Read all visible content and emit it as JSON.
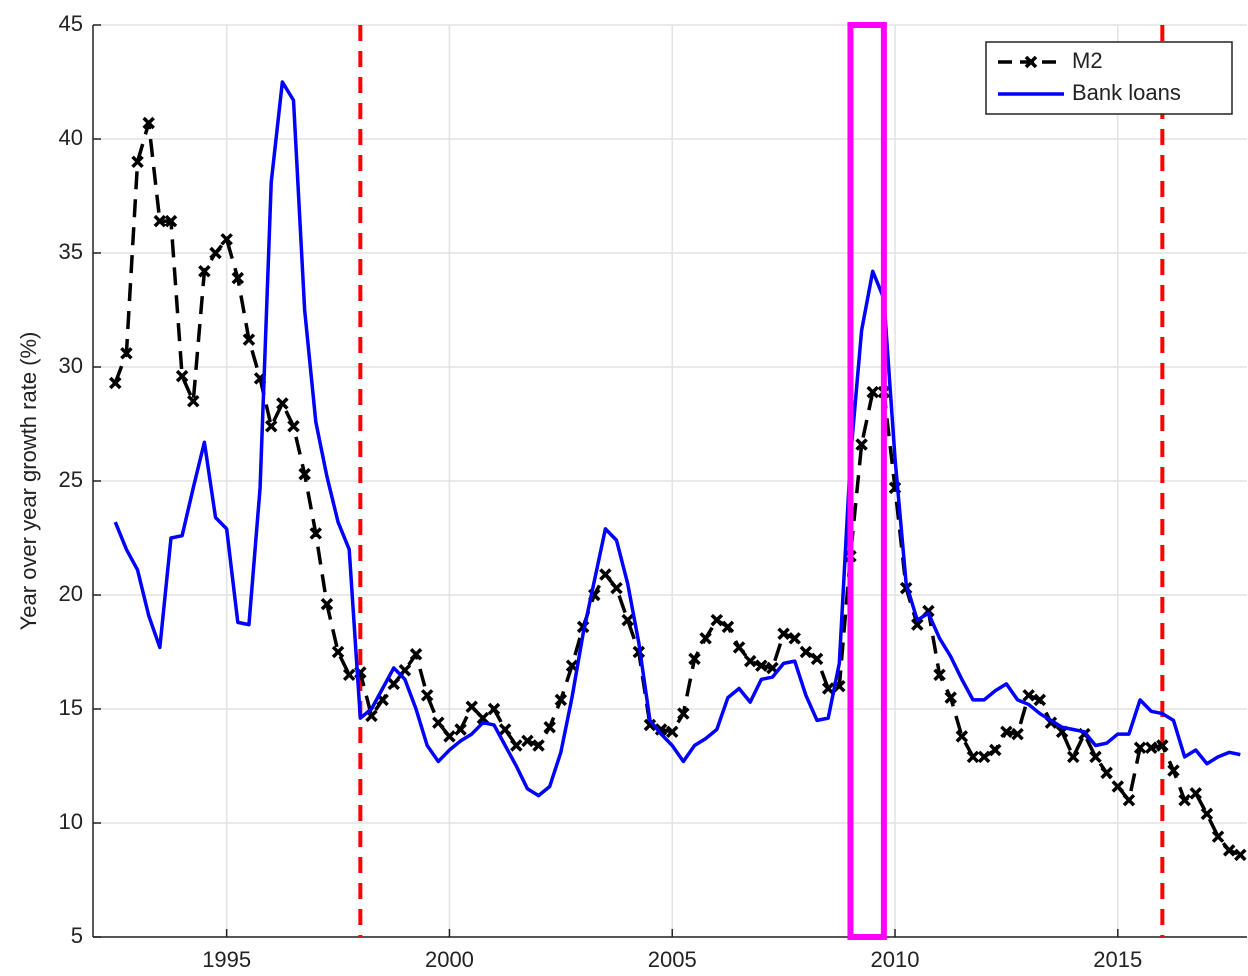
{
  "chart_data": {
    "type": "line",
    "ylabel": "Year over year growth rate (%)",
    "x": [
      1992.5,
      1992.75,
      1993,
      1993.25,
      1993.5,
      1993.75,
      1994,
      1994.25,
      1994.5,
      1994.75,
      1995,
      1995.25,
      1995.5,
      1995.75,
      1996,
      1996.25,
      1996.5,
      1996.75,
      1997,
      1997.25,
      1997.5,
      1997.75,
      1998,
      1998.25,
      1998.5,
      1998.75,
      1999,
      1999.25,
      1999.5,
      1999.75,
      2000,
      2000.25,
      2000.5,
      2000.75,
      2001,
      2001.25,
      2001.5,
      2001.75,
      2002,
      2002.25,
      2002.5,
      2002.75,
      2003,
      2003.25,
      2003.5,
      2003.75,
      2004,
      2004.25,
      2004.5,
      2004.75,
      2005,
      2005.25,
      2005.5,
      2005.75,
      2006,
      2006.25,
      2006.5,
      2006.75,
      2007,
      2007.25,
      2007.5,
      2007.75,
      2008,
      2008.25,
      2008.5,
      2008.75,
      2009,
      2009.25,
      2009.5,
      2009.75,
      2010,
      2010.25,
      2010.5,
      2010.75,
      2011,
      2011.25,
      2011.5,
      2011.75,
      2012,
      2012.25,
      2012.5,
      2012.75,
      2013,
      2013.25,
      2013.5,
      2013.75,
      2014,
      2014.25,
      2014.5,
      2014.75,
      2015,
      2015.25,
      2015.5,
      2015.75,
      2016,
      2016.25,
      2016.5,
      2016.75,
      2017,
      2017.25,
      2017.5,
      2017.75
    ],
    "series": [
      {
        "name": "M2",
        "color": "#000000",
        "dashed": true,
        "marker": "x",
        "values": [
          29.3,
          30.6,
          39.0,
          40.7,
          36.4,
          36.4,
          29.6,
          28.5,
          34.2,
          35.0,
          35.6,
          33.9,
          31.2,
          29.5,
          27.4,
          28.4,
          27.4,
          25.3,
          22.7,
          19.6,
          17.5,
          16.5,
          16.6,
          14.7,
          15.4,
          16.1,
          16.7,
          17.4,
          15.6,
          14.4,
          13.8,
          14.1,
          15.1,
          14.6,
          15.0,
          14.1,
          13.4,
          13.6,
          13.4,
          14.2,
          15.4,
          16.9,
          18.6,
          20.0,
          20.9,
          20.3,
          18.9,
          17.5,
          14.3,
          14.1,
          14.0,
          14.8,
          17.2,
          18.1,
          18.9,
          18.6,
          17.7,
          17.1,
          16.9,
          16.8,
          18.3,
          18.1,
          17.5,
          17.2,
          15.9,
          16.0,
          21.7,
          26.6,
          28.9,
          28.9,
          24.7,
          20.3,
          18.7,
          19.3,
          16.5,
          15.5,
          13.8,
          12.9,
          12.9,
          13.2,
          14.0,
          13.9,
          15.6,
          15.4,
          14.4,
          14.0,
          12.9,
          13.9,
          12.9,
          12.2,
          11.6,
          11.0,
          13.3,
          13.3,
          13.4,
          12.3,
          11.0,
          11.3,
          10.4,
          9.4,
          8.8,
          8.6
        ]
      },
      {
        "name": "Bank loans",
        "color": "#0000ff",
        "dashed": false,
        "marker": null,
        "values": [
          23.2,
          22.0,
          21.1,
          19.1,
          17.7,
          22.5,
          22.6,
          24.7,
          26.7,
          23.4,
          22.9,
          18.8,
          18.7,
          24.7,
          38.1,
          42.5,
          41.7,
          32.5,
          27.6,
          25.2,
          23.2,
          22.0,
          14.6,
          15.0,
          15.9,
          16.8,
          16.3,
          15.0,
          13.4,
          12.7,
          13.2,
          13.6,
          13.9,
          14.4,
          14.3,
          13.4,
          12.5,
          11.5,
          11.2,
          11.6,
          13.1,
          15.5,
          18.3,
          20.6,
          22.9,
          22.4,
          20.5,
          17.9,
          14.5,
          13.9,
          13.4,
          12.7,
          13.4,
          13.7,
          14.1,
          15.5,
          15.9,
          15.3,
          16.3,
          16.4,
          17.0,
          17.1,
          15.6,
          14.5,
          14.6,
          17.0,
          26.0,
          31.6,
          34.2,
          33.0,
          26.0,
          20.5,
          18.9,
          19.2,
          18.1,
          17.3,
          16.3,
          15.4,
          15.4,
          15.8,
          16.1,
          15.4,
          15.2,
          14.8,
          14.5,
          14.2,
          14.1,
          14.0,
          13.4,
          13.5,
          13.9,
          13.9,
          15.4,
          14.9,
          14.8,
          14.5,
          12.9,
          13.2,
          12.6,
          12.9,
          13.1,
          13.0
        ]
      }
    ],
    "xlim": [
      1992,
      2017.9
    ],
    "ylim": [
      5,
      45
    ],
    "xticks": [
      1995,
      2000,
      2005,
      2010,
      2015
    ],
    "yticks": [
      5,
      10,
      15,
      20,
      25,
      30,
      35,
      40,
      45
    ],
    "grid": true,
    "legend": "upper-right",
    "vlines": [
      1998,
      2016
    ],
    "vline_color": "#ff0000",
    "highlight": [
      2009,
      2009.75
    ],
    "highlight_color": "#ff00ff"
  }
}
